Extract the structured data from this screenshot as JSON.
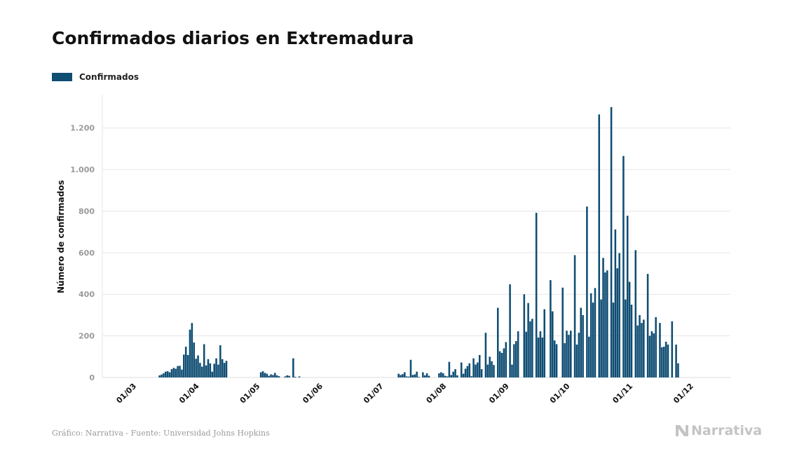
{
  "title": "Confirmados diarios en Extremadura",
  "source": "Gráfico: Narrativa - Fuente: Universidad Johns Hopkins",
  "logo": {
    "text": "Narrativa",
    "icon": "narrativa-n-icon"
  },
  "colors": {
    "bar": "#0f4d73",
    "grid": "#e6e6e6",
    "tick": "#9a9a9a",
    "logo": "#c4c4c4"
  },
  "chart_data": {
    "type": "bar",
    "title": "Confirmados diarios en Extremadura",
    "xlabel": "",
    "ylabel": "Número de confirmados",
    "ylim": [
      0,
      1300
    ],
    "yticks": [
      0,
      200,
      400,
      600,
      800,
      1000,
      1200
    ],
    "ytick_labels": [
      "0",
      "200",
      "400",
      "600",
      "800",
      "1.000",
      "1.200"
    ],
    "grid": true,
    "legend_position": "top-left",
    "x_start": "2020-03-01",
    "xticks": [
      "2020-03-01",
      "2020-04-01",
      "2020-05-01",
      "2020-06-01",
      "2020-07-01",
      "2020-08-01",
      "2020-09-01",
      "2020-10-01",
      "2020-11-01",
      "2020-12-01"
    ],
    "xtick_labels": [
      "01/03",
      "01/04",
      "01/05",
      "01/06",
      "01/07",
      "01/08",
      "01/09",
      "01/10",
      "01/11",
      "01/12"
    ],
    "series": [
      {
        "name": "Confirmados",
        "values": [
          0,
          0,
          0,
          0,
          0,
          0,
          0,
          0,
          0,
          0,
          0,
          0,
          0,
          0,
          0,
          10,
          14,
          20,
          28,
          30,
          25,
          40,
          46,
          42,
          55,
          56,
          38,
          110,
          148,
          108,
          230,
          262,
          168,
          90,
          106,
          70,
          52,
          160,
          58,
          88,
          68,
          28,
          66,
          92,
          62,
          155,
          88,
          70,
          80,
          0,
          0,
          0,
          0,
          0,
          0,
          0,
          0,
          0,
          0,
          0,
          0,
          0,
          0,
          0,
          0,
          25,
          30,
          22,
          18,
          8,
          15,
          12,
          22,
          10,
          6,
          0,
          0,
          5,
          10,
          8,
          0,
          92,
          3,
          0,
          5,
          0,
          0,
          0,
          0,
          0,
          0,
          0,
          0,
          0,
          0,
          0,
          0,
          0,
          0,
          0,
          0,
          0,
          0,
          0,
          0,
          0,
          0,
          0,
          0,
          0,
          0,
          0,
          0,
          0,
          0,
          0,
          0,
          0,
          0,
          0,
          0,
          0,
          0,
          0,
          0,
          0,
          0,
          0,
          0,
          0,
          0,
          0,
          0,
          18,
          12,
          16,
          25,
          5,
          4,
          85,
          12,
          15,
          28,
          3,
          0,
          25,
          10,
          20,
          8,
          0,
          0,
          0,
          0,
          20,
          25,
          20,
          8,
          5,
          75,
          12,
          28,
          40,
          10,
          0,
          72,
          18,
          42,
          55,
          68,
          6,
          92,
          62,
          72,
          108,
          40,
          0,
          215,
          62,
          100,
          78,
          60,
          0,
          335,
          126,
          118,
          140,
          170,
          0,
          448,
          62,
          160,
          175,
          222,
          0,
          0,
          400,
          220,
          358,
          270,
          282,
          0,
          792,
          192,
          222,
          192,
          328,
          0,
          0,
          468,
          318,
          178,
          160,
          0,
          0,
          432,
          165,
          225,
          205,
          225,
          0,
          588,
          158,
          215,
          335,
          300,
          0,
          822,
          196,
          405,
          360,
          430,
          0,
          1265,
          375,
          575,
          505,
          515,
          0,
          1300,
          360,
          712,
          525,
          598,
          0,
          1065,
          375,
          778,
          460,
          350,
          0,
          612,
          250,
          300,
          262,
          278,
          0,
          498,
          200,
          222,
          212,
          290,
          0,
          262,
          145,
          148,
          172,
          158,
          0,
          270,
          0,
          158,
          68
        ]
      }
    ]
  }
}
